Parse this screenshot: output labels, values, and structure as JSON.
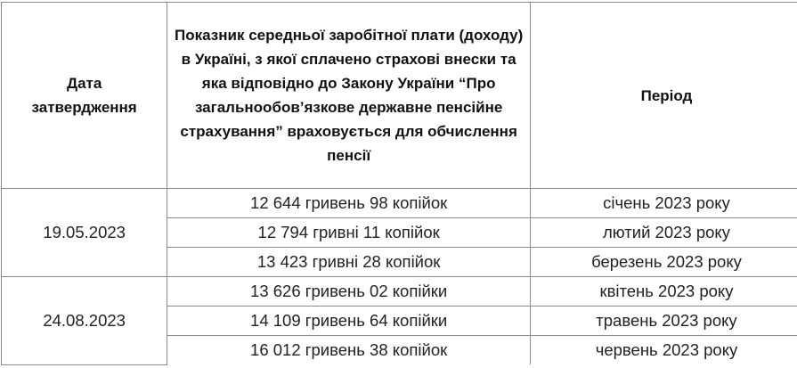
{
  "table": {
    "headers": [
      "Дата затвердження",
      "Показник середньої заробітної плати (доходу) в Україні, з якої сплачено страхові внески та яка відповідно до Закону України “Про загальнообов’язкове державне пенсійне страхування” враховується для обчислення пенсії",
      "Період"
    ],
    "groups": [
      {
        "date": "19.05.2023",
        "rows": [
          {
            "amount": "12 644 гривень 98 копійок",
            "period": "січень 2023 року"
          },
          {
            "amount": "12 794 гривні 11 копійок",
            "period": "лютий 2023 року"
          },
          {
            "amount": "13 423 гривні 28 копійок",
            "period": "березень 2023 року"
          }
        ]
      },
      {
        "date": "24.08.2023",
        "rows": [
          {
            "amount": "13 626 гривень 02 копійки",
            "period": "квітень 2023 року"
          },
          {
            "amount": "14 109 гривень 64 копійки",
            "period": "травень 2023 року"
          },
          {
            "amount": "16 012 гривень 38 копійок",
            "period": "червень 2023 року"
          }
        ]
      }
    ]
  }
}
